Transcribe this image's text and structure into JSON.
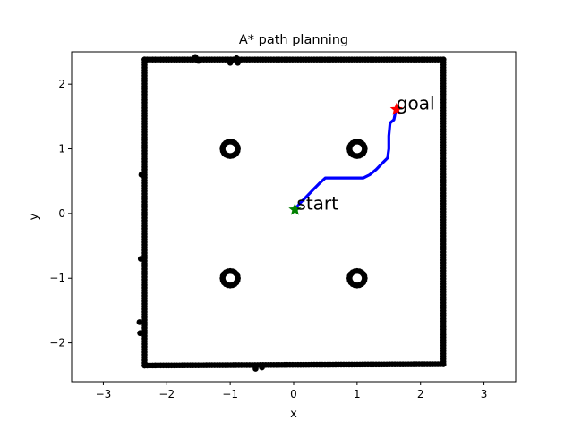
{
  "chart_data": {
    "type": "scatter",
    "title": "A* path planning",
    "xlabel": "x",
    "ylabel": "y",
    "xlim": [
      -3.5,
      3.5
    ],
    "ylim": [
      -2.6,
      2.5
    ],
    "xticks": [
      -3,
      -2,
      -1,
      0,
      1,
      2,
      3
    ],
    "xtick_labels": [
      "−3",
      "−2",
      "−1",
      "0",
      "1",
      "2",
      "3"
    ],
    "yticks": [
      -2,
      -1,
      0,
      1,
      2
    ],
    "ytick_labels": [
      "−2",
      "−1",
      "0",
      "1",
      "2"
    ],
    "grid": false,
    "colors": {
      "obstacles": "#000000",
      "path": "#0000ff",
      "start": "#008000",
      "goal": "#ff0000"
    },
    "obstacle_walls": [
      {
        "name": "left",
        "from": [
          -2.35,
          -2.35
        ],
        "to": [
          -2.35,
          2.38
        ]
      },
      {
        "name": "right",
        "from": [
          2.36,
          -2.33
        ],
        "to": [
          2.36,
          2.38
        ]
      },
      {
        "name": "top",
        "from": [
          -2.35,
          2.38
        ],
        "to": [
          2.36,
          2.38
        ]
      },
      {
        "name": "bottom",
        "from": [
          -2.35,
          -2.35
        ],
        "to": [
          2.36,
          -2.33
        ]
      }
    ],
    "obstacle_blobs": [
      {
        "center": [
          -1.0,
          1.0
        ],
        "radius": 0.12
      },
      {
        "center": [
          1.0,
          1.0
        ],
        "radius": 0.12
      },
      {
        "center": [
          -1.0,
          -1.0
        ],
        "radius": 0.12
      },
      {
        "center": [
          1.0,
          -1.0
        ],
        "radius": 0.12
      }
    ],
    "obstacle_extra_points": [
      [
        -2.42,
        -1.85
      ],
      [
        -2.43,
        -1.68
      ],
      [
        -2.4,
        0.6
      ],
      [
        -2.41,
        -0.7
      ],
      [
        -1.0,
        2.33
      ],
      [
        -0.9,
        2.4
      ],
      [
        -0.88,
        2.33
      ],
      [
        -0.5,
        -2.38
      ],
      [
        -0.6,
        -2.4
      ],
      [
        -1.5,
        2.36
      ],
      [
        -1.55,
        2.42
      ]
    ],
    "path": {
      "name": "path",
      "x": [
        0.02,
        0.1,
        0.2,
        0.3,
        0.4,
        0.5,
        0.7,
        0.9,
        1.1,
        1.2,
        1.3,
        1.4,
        1.48,
        1.5,
        1.5,
        1.52,
        1.58,
        1.6,
        1.62
      ],
      "y": [
        0.06,
        0.16,
        0.26,
        0.36,
        0.46,
        0.55,
        0.55,
        0.55,
        0.55,
        0.6,
        0.68,
        0.78,
        0.86,
        1.0,
        1.2,
        1.4,
        1.45,
        1.55,
        1.61
      ]
    },
    "start": {
      "label": "start",
      "x": 0.02,
      "y": 0.06
    },
    "goal": {
      "label": "goal",
      "x": 1.62,
      "y": 1.61
    }
  }
}
